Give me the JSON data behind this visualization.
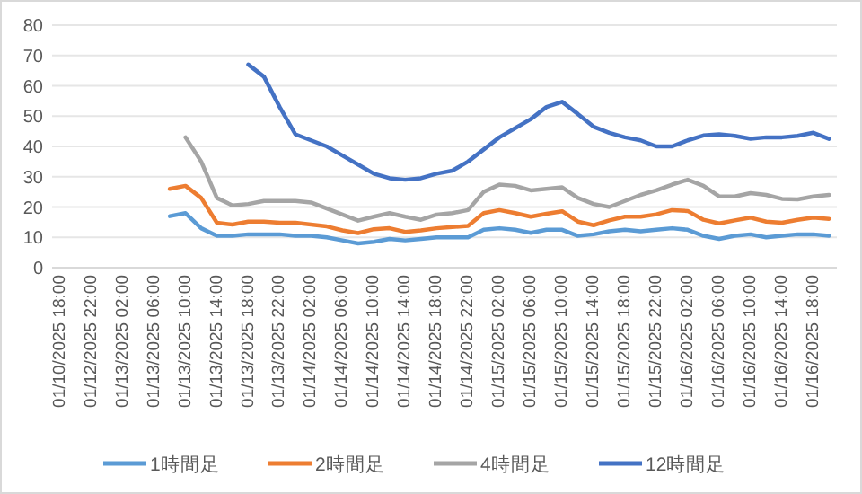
{
  "chart_data": {
    "type": "line",
    "categories": [
      "01/10/2025 18:00",
      null,
      "01/12/2025 22:00",
      null,
      "01/13/2025 02:00",
      null,
      "01/13/2025 06:00",
      null,
      "01/13/2025 10:00",
      null,
      "01/13/2025 14:00",
      null,
      "01/13/2025 18:00",
      null,
      "01/13/2025 22:00",
      null,
      "01/14/2025 02:00",
      null,
      "01/14/2025 06:00",
      null,
      "01/14/2025 10:00",
      null,
      "01/14/2025 14:00",
      null,
      "01/14/2025 18:00",
      null,
      "01/14/2025 22:00",
      null,
      "01/15/2025 02:00",
      null,
      "01/15/2025 06:00",
      null,
      "01/15/2025 10:00",
      null,
      "01/15/2025 14:00",
      null,
      "01/15/2025 18:00",
      null,
      "01/15/2025 22:00",
      null,
      "01/16/2025 02:00",
      null,
      "01/16/2025 06:00",
      null,
      "01/16/2025 10:00",
      null,
      "01/16/2025 14:00",
      null,
      "01/16/2025 18:00",
      null
    ],
    "series": [
      {
        "name": "1時間足",
        "color": "#5b9bd5",
        "values": [
          null,
          null,
          null,
          null,
          null,
          null,
          null,
          17,
          18,
          13,
          10.5,
          10.5,
          11,
          11,
          11,
          10.5,
          10.5,
          10,
          9,
          8,
          8.5,
          9.5,
          9,
          9.5,
          10,
          10,
          10,
          12.5,
          13,
          12.5,
          11.5,
          12.5,
          12.5,
          10.5,
          11,
          12,
          12.5,
          12,
          12.5,
          13,
          12.5,
          10.5,
          9.5,
          10.5,
          11,
          10,
          10.5,
          11,
          11,
          10.5
        ]
      },
      {
        "name": "2時間足",
        "color": "#ed7d31",
        "values": [
          null,
          null,
          null,
          null,
          null,
          null,
          null,
          26,
          27,
          23,
          14.8,
          14.2,
          15.2,
          15.2,
          14.8,
          14.8,
          14.2,
          13.6,
          12.3,
          11.4,
          12.7,
          13,
          11.8,
          12.3,
          13,
          13.4,
          13.8,
          18,
          19,
          18,
          16.8,
          17.8,
          18.6,
          15.2,
          14,
          15.6,
          16.8,
          16.8,
          17.6,
          19,
          18.7,
          15.8,
          14.6,
          15.6,
          16.5,
          15.2,
          14.8,
          15.8,
          16.5,
          16.1
        ]
      },
      {
        "name": "4時間足",
        "color": "#a5a5a5",
        "values": [
          null,
          null,
          null,
          null,
          null,
          null,
          null,
          null,
          43,
          35,
          23,
          20.5,
          21,
          22,
          22,
          22,
          21.5,
          19.5,
          17.5,
          15.5,
          16.8,
          18,
          16.8,
          15.8,
          17.5,
          18,
          19,
          25,
          27.4,
          27,
          25.5,
          26,
          26.5,
          23,
          21,
          20,
          22,
          24,
          25.5,
          27.4,
          29,
          27,
          23.5,
          23.5,
          24.6,
          24,
          22.7,
          22.5,
          23.5,
          24
        ]
      },
      {
        "name": "12時間足",
        "color": "#4472c4",
        "values": [
          null,
          null,
          null,
          null,
          null,
          null,
          null,
          null,
          null,
          null,
          null,
          null,
          67,
          63,
          53,
          44,
          42,
          40,
          37,
          34,
          31,
          29.5,
          29,
          29.5,
          31,
          32,
          35,
          39,
          43,
          46,
          49,
          53,
          54.7,
          50.7,
          46.5,
          44.5,
          43,
          42,
          40,
          40,
          42,
          43.6,
          44,
          43.5,
          42.5,
          43,
          43,
          43.5,
          44.5,
          42.5
        ]
      }
    ],
    "ylim": [
      0,
      80
    ],
    "yticks": [
      0,
      10,
      20,
      30,
      40,
      50,
      60,
      70,
      80
    ],
    "grid": "y",
    "legend": "bottom",
    "marker": "none",
    "line_style": "solid"
  }
}
